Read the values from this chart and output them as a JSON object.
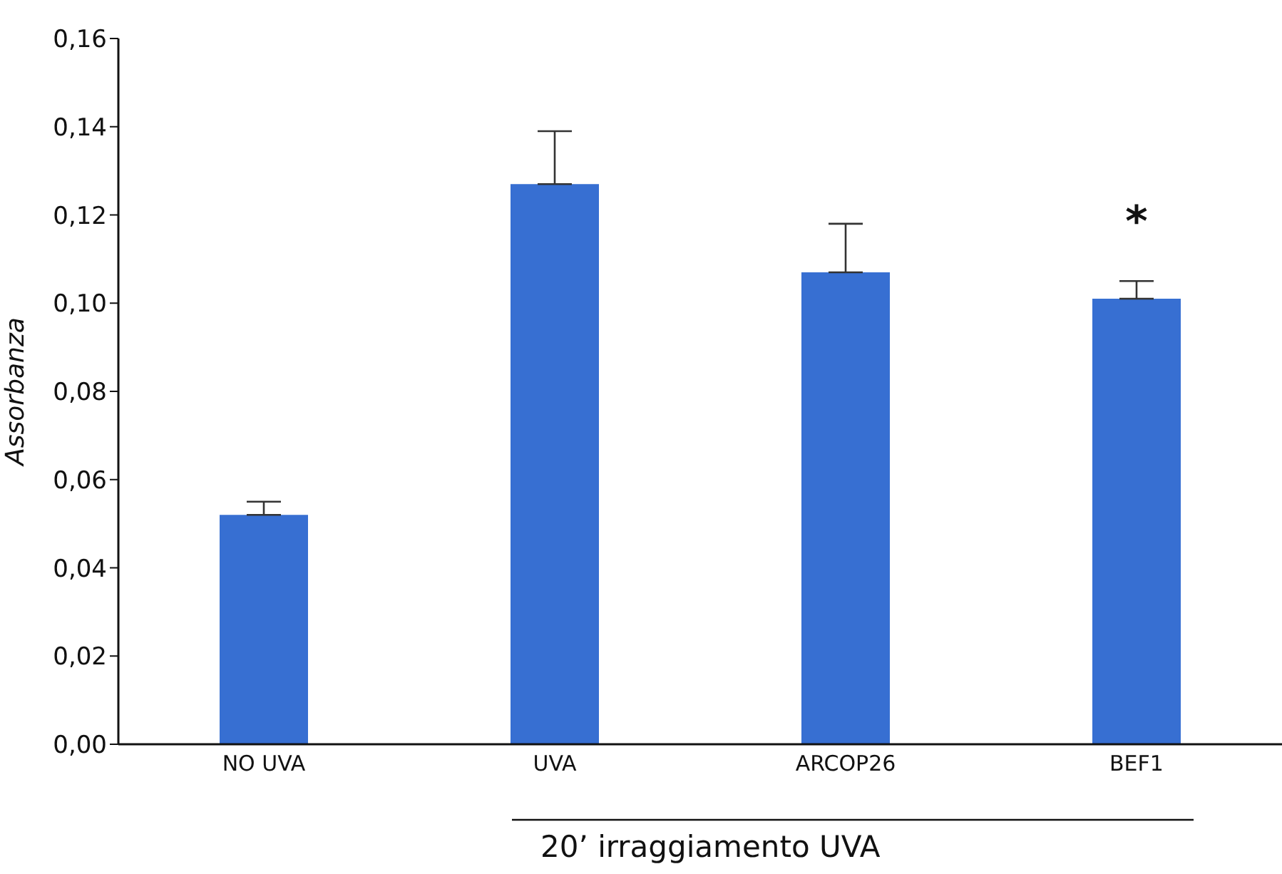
{
  "chart_data": {
    "type": "bar",
    "ylabel": "Assorbanza",
    "categories": [
      "NO UVA",
      "UVA",
      "ARCOP26",
      "BEF1"
    ],
    "values": [
      0.052,
      0.127,
      0.107,
      0.101
    ],
    "errors": [
      0.003,
      0.012,
      0.011,
      0.004
    ],
    "color": "#376fd2",
    "ylim": [
      0,
      0.16
    ],
    "yticks": [
      {
        "value": 0,
        "label": "0,00"
      },
      {
        "value": 0.02,
        "label": "0,02"
      },
      {
        "value": 0.04,
        "label": "0,04"
      },
      {
        "value": 0.06,
        "label": "0,06"
      },
      {
        "value": 0.08,
        "label": "0,08"
      },
      {
        "value": 0.1,
        "label": "0,10"
      },
      {
        "value": 0.12,
        "label": "0,12"
      },
      {
        "value": 0.14,
        "label": "0,14"
      },
      {
        "value": 0.16,
        "label": "0,16"
      }
    ],
    "annotations": [
      "*",
      "20’ irraggiamento UVA"
    ],
    "grid": false,
    "legend": false
  }
}
